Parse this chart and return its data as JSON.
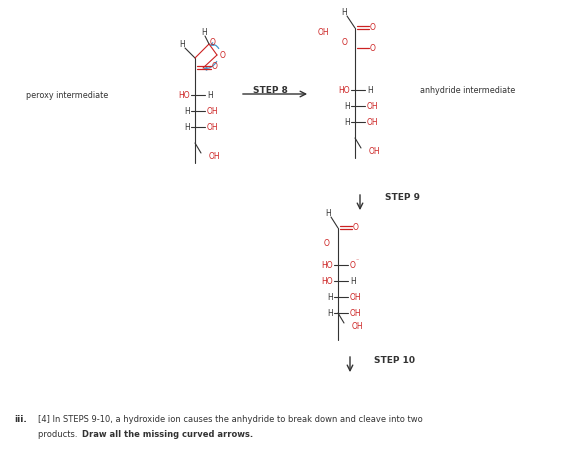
{
  "bg_color": "#ffffff",
  "red_color": "#cc2222",
  "blue_color": "#4499cc",
  "dark_color": "#333333",
  "figsize": [
    5.65,
    4.69
  ],
  "dpi": 100,
  "label_step8": "STEP 8",
  "label_step9": "STEP 9",
  "label_step10": "STEP 10",
  "label_peroxy": "peroxy intermediate",
  "label_anhydride": "anhydride intermediate",
  "caption1": "[4] In STEPS 9-10, a hydroxide ion causes the anhydride to break down and cleave into two",
  "caption2": "products. ",
  "caption_bold": "Draw all the missing curved arrows."
}
